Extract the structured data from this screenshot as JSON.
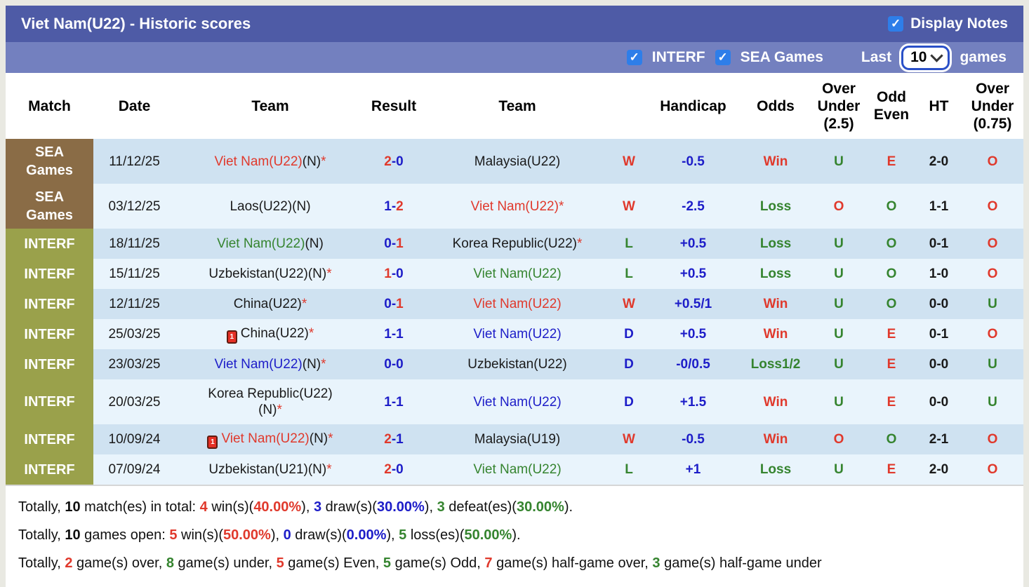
{
  "palette": {
    "red": "#e0392c",
    "green": "#35842f",
    "blue": "#1d1dc8",
    "black": "#1a1a1a"
  },
  "title_bar": {
    "title": "Viet Nam(U22) - Historic scores",
    "display_notes_label": "Display Notes",
    "display_notes_checked": true,
    "checkmark": "✓"
  },
  "filter_bar": {
    "interf_label": "INTERF",
    "interf_checked": true,
    "sea_games_label": "SEA Games",
    "sea_games_checked": true,
    "last_label": "Last",
    "last_value": "10",
    "games_label": "games",
    "checkmark": "✓"
  },
  "table": {
    "headers": [
      "Match",
      "Date",
      "Team",
      "Result",
      "Team",
      "",
      "Handicap",
      "Odds",
      "Over\nUnder\n(2.5)",
      "Odd\nEven",
      "HT",
      "Over\nUnder\n(0.75)"
    ],
    "rows": [
      {
        "match": "SEA\nGames",
        "match_type": "sea",
        "tall": true,
        "date": "11/12/25",
        "home": {
          "name": "Viet Nam(U22)",
          "color": "red",
          "suffix": "(N)",
          "star": true,
          "red_card": false
        },
        "score": {
          "h": "2",
          "a": "0",
          "hc": "red",
          "ac": "blue"
        },
        "away": {
          "name": "Malaysia(U22)",
          "color": "black",
          "suffix": "",
          "star": false,
          "red_card": false
        },
        "wdl": {
          "t": "W",
          "c": "red"
        },
        "handicap": "-0.5",
        "odds": {
          "t": "Win",
          "c": "red"
        },
        "ou25": {
          "t": "U",
          "c": "green"
        },
        "oe": {
          "t": "E",
          "c": "red"
        },
        "ht": "2-0",
        "ou075": {
          "t": "O",
          "c": "red"
        }
      },
      {
        "match": "SEA\nGames",
        "match_type": "sea",
        "tall": true,
        "date": "03/12/25",
        "home": {
          "name": "Laos(U22)",
          "color": "black",
          "suffix": "(N)",
          "star": false,
          "red_card": false
        },
        "score": {
          "h": "1",
          "a": "2",
          "hc": "blue",
          "ac": "red"
        },
        "away": {
          "name": "Viet Nam(U22)",
          "color": "red",
          "suffix": "",
          "star": true,
          "red_card": false
        },
        "wdl": {
          "t": "W",
          "c": "red"
        },
        "handicap": "-2.5",
        "odds": {
          "t": "Loss",
          "c": "green"
        },
        "ou25": {
          "t": "O",
          "c": "red"
        },
        "oe": {
          "t": "O",
          "c": "green"
        },
        "ht": "1-1",
        "ou075": {
          "t": "O",
          "c": "red"
        }
      },
      {
        "match": "INTERF",
        "match_type": "interf",
        "tall": false,
        "date": "18/11/25",
        "home": {
          "name": "Viet Nam(U22)",
          "color": "green",
          "suffix": "(N)",
          "star": false,
          "red_card": false
        },
        "score": {
          "h": "0",
          "a": "1",
          "hc": "blue",
          "ac": "red"
        },
        "away": {
          "name": "Korea Republic(U22)",
          "color": "black",
          "suffix": "",
          "star": true,
          "red_card": false
        },
        "wdl": {
          "t": "L",
          "c": "green"
        },
        "handicap": "+0.5",
        "odds": {
          "t": "Loss",
          "c": "green"
        },
        "ou25": {
          "t": "U",
          "c": "green"
        },
        "oe": {
          "t": "O",
          "c": "green"
        },
        "ht": "0-1",
        "ou075": {
          "t": "O",
          "c": "red"
        }
      },
      {
        "match": "INTERF",
        "match_type": "interf",
        "tall": false,
        "date": "15/11/25",
        "home": {
          "name": "Uzbekistan(U22)",
          "color": "black",
          "suffix": "(N)",
          "star": true,
          "red_card": false
        },
        "score": {
          "h": "1",
          "a": "0",
          "hc": "red",
          "ac": "blue"
        },
        "away": {
          "name": "Viet Nam(U22)",
          "color": "green",
          "suffix": "",
          "star": false,
          "red_card": false
        },
        "wdl": {
          "t": "L",
          "c": "green"
        },
        "handicap": "+0.5",
        "odds": {
          "t": "Loss",
          "c": "green"
        },
        "ou25": {
          "t": "U",
          "c": "green"
        },
        "oe": {
          "t": "O",
          "c": "green"
        },
        "ht": "1-0",
        "ou075": {
          "t": "O",
          "c": "red"
        }
      },
      {
        "match": "INTERF",
        "match_type": "interf",
        "tall": false,
        "date": "12/11/25",
        "home": {
          "name": "China(U22)",
          "color": "black",
          "suffix": "",
          "star": true,
          "red_card": false
        },
        "score": {
          "h": "0",
          "a": "1",
          "hc": "blue",
          "ac": "red"
        },
        "away": {
          "name": "Viet Nam(U22)",
          "color": "red",
          "suffix": "",
          "star": false,
          "red_card": false
        },
        "wdl": {
          "t": "W",
          "c": "red"
        },
        "handicap": "+0.5/1",
        "odds": {
          "t": "Win",
          "c": "red"
        },
        "ou25": {
          "t": "U",
          "c": "green"
        },
        "oe": {
          "t": "O",
          "c": "green"
        },
        "ht": "0-0",
        "ou075": {
          "t": "U",
          "c": "green"
        }
      },
      {
        "match": "INTERF",
        "match_type": "interf",
        "tall": false,
        "date": "25/03/25",
        "home": {
          "name": "China(U22)",
          "color": "black",
          "suffix": "",
          "star": true,
          "red_card": true
        },
        "score": {
          "h": "1",
          "a": "1",
          "hc": "blue",
          "ac": "blue"
        },
        "away": {
          "name": "Viet Nam(U22)",
          "color": "blue",
          "suffix": "",
          "star": false,
          "red_card": false
        },
        "wdl": {
          "t": "D",
          "c": "blue"
        },
        "handicap": "+0.5",
        "odds": {
          "t": "Win",
          "c": "red"
        },
        "ou25": {
          "t": "U",
          "c": "green"
        },
        "oe": {
          "t": "E",
          "c": "red"
        },
        "ht": "0-1",
        "ou075": {
          "t": "O",
          "c": "red"
        }
      },
      {
        "match": "INTERF",
        "match_type": "interf",
        "tall": false,
        "date": "23/03/25",
        "home": {
          "name": "Viet Nam(U22)",
          "color": "blue",
          "suffix": "(N)",
          "star": true,
          "red_card": false
        },
        "score": {
          "h": "0",
          "a": "0",
          "hc": "blue",
          "ac": "blue"
        },
        "away": {
          "name": "Uzbekistan(U22)",
          "color": "black",
          "suffix": "",
          "star": false,
          "red_card": false
        },
        "wdl": {
          "t": "D",
          "c": "blue"
        },
        "handicap": "-0/0.5",
        "odds": {
          "t": "Loss1/2",
          "c": "green"
        },
        "ou25": {
          "t": "U",
          "c": "green"
        },
        "oe": {
          "t": "E",
          "c": "red"
        },
        "ht": "0-0",
        "ou075": {
          "t": "U",
          "c": "green"
        }
      },
      {
        "match": "INTERF",
        "match_type": "interf",
        "tall": true,
        "date": "20/03/25",
        "home": {
          "name": "Korea Republic(U22)",
          "color": "black",
          "suffix": "\n(N)",
          "star": true,
          "red_card": false
        },
        "score": {
          "h": "1",
          "a": "1",
          "hc": "blue",
          "ac": "blue"
        },
        "away": {
          "name": "Viet Nam(U22)",
          "color": "blue",
          "suffix": "",
          "star": false,
          "red_card": false
        },
        "wdl": {
          "t": "D",
          "c": "blue"
        },
        "handicap": "+1.5",
        "odds": {
          "t": "Win",
          "c": "red"
        },
        "ou25": {
          "t": "U",
          "c": "green"
        },
        "oe": {
          "t": "E",
          "c": "red"
        },
        "ht": "0-0",
        "ou075": {
          "t": "U",
          "c": "green"
        }
      },
      {
        "match": "INTERF",
        "match_type": "interf",
        "tall": false,
        "date": "10/09/24",
        "home": {
          "name": "Viet Nam(U22)",
          "color": "red",
          "suffix": "(N)",
          "star": true,
          "red_card": true
        },
        "score": {
          "h": "2",
          "a": "1",
          "hc": "red",
          "ac": "blue"
        },
        "away": {
          "name": "Malaysia(U19)",
          "color": "black",
          "suffix": "",
          "star": false,
          "red_card": false
        },
        "wdl": {
          "t": "W",
          "c": "red"
        },
        "handicap": "-0.5",
        "odds": {
          "t": "Win",
          "c": "red"
        },
        "ou25": {
          "t": "O",
          "c": "red"
        },
        "oe": {
          "t": "O",
          "c": "green"
        },
        "ht": "2-1",
        "ou075": {
          "t": "O",
          "c": "red"
        }
      },
      {
        "match": "INTERF",
        "match_type": "interf",
        "tall": false,
        "date": "07/09/24",
        "home": {
          "name": "Uzbekistan(U21)",
          "color": "black",
          "suffix": "(N)",
          "star": true,
          "red_card": false
        },
        "score": {
          "h": "2",
          "a": "0",
          "hc": "red",
          "ac": "blue"
        },
        "away": {
          "name": "Viet Nam(U22)",
          "color": "green",
          "suffix": "",
          "star": false,
          "red_card": false
        },
        "wdl": {
          "t": "L",
          "c": "green"
        },
        "handicap": "+1",
        "odds": {
          "t": "Loss",
          "c": "green"
        },
        "ou25": {
          "t": "U",
          "c": "green"
        },
        "oe": {
          "t": "E",
          "c": "red"
        },
        "ht": "2-0",
        "ou075": {
          "t": "O",
          "c": "red"
        }
      }
    ],
    "red_card_icon_label": "1"
  },
  "footer": {
    "lines": [
      [
        {
          "t": "Totally, "
        },
        {
          "t": "10",
          "b": 1
        },
        {
          "t": " match(es) in total: "
        },
        {
          "t": "4",
          "c": "red",
          "b": 1
        },
        {
          "t": " win(s)("
        },
        {
          "t": "40.00%",
          "c": "red",
          "b": 1
        },
        {
          "t": "), "
        },
        {
          "t": "3",
          "c": "blue",
          "b": 1
        },
        {
          "t": " draw(s)("
        },
        {
          "t": "30.00%",
          "c": "blue",
          "b": 1
        },
        {
          "t": "), "
        },
        {
          "t": "3",
          "c": "green",
          "b": 1
        },
        {
          "t": " defeat(es)("
        },
        {
          "t": "30.00%",
          "c": "green",
          "b": 1
        },
        {
          "t": ")."
        }
      ],
      [
        {
          "t": "Totally, "
        },
        {
          "t": "10",
          "b": 1
        },
        {
          "t": " games open: "
        },
        {
          "t": "5",
          "c": "red",
          "b": 1
        },
        {
          "t": " win(s)("
        },
        {
          "t": "50.00%",
          "c": "red",
          "b": 1
        },
        {
          "t": "), "
        },
        {
          "t": "0",
          "c": "blue",
          "b": 1
        },
        {
          "t": " draw(s)("
        },
        {
          "t": "0.00%",
          "c": "blue",
          "b": 1
        },
        {
          "t": "), "
        },
        {
          "t": "5",
          "c": "green",
          "b": 1
        },
        {
          "t": " loss(es)("
        },
        {
          "t": "50.00%",
          "c": "green",
          "b": 1
        },
        {
          "t": ")."
        }
      ],
      [
        {
          "t": "Totally, "
        },
        {
          "t": "2",
          "c": "red",
          "b": 1
        },
        {
          "t": " game(s) over, "
        },
        {
          "t": "8",
          "c": "green",
          "b": 1
        },
        {
          "t": " game(s) under, "
        },
        {
          "t": "5",
          "c": "red",
          "b": 1
        },
        {
          "t": " game(s) Even, "
        },
        {
          "t": "5",
          "c": "green",
          "b": 1
        },
        {
          "t": " game(s) Odd, "
        },
        {
          "t": "7",
          "c": "red",
          "b": 1
        },
        {
          "t": " game(s) half-game over, "
        },
        {
          "t": "3",
          "c": "green",
          "b": 1
        },
        {
          "t": " game(s) half-game under"
        }
      ]
    ]
  }
}
